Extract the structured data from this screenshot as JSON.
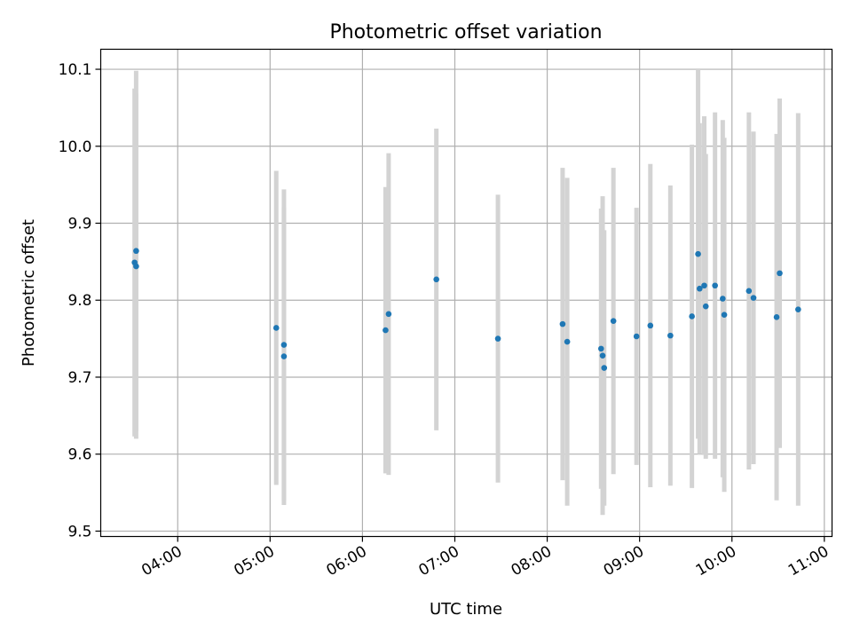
{
  "chart_data": {
    "type": "scatter",
    "title": "Photometric offset variation",
    "xlabel": "UTC time",
    "ylabel": "Photometric offset",
    "x_axis_kind": "time",
    "xlim": [
      "03:10",
      "11:05"
    ],
    "ylim": [
      9.493,
      10.126
    ],
    "xticks": [
      "04:00",
      "05:00",
      "06:00",
      "07:00",
      "08:00",
      "09:00",
      "10:00",
      "11:00"
    ],
    "yticks": [
      9.5,
      9.6,
      9.7,
      9.8,
      9.9,
      10.0,
      10.1
    ],
    "ytick_labels": [
      "9.5",
      "9.6",
      "9.7",
      "9.8",
      "9.9",
      "10.0",
      "10.1"
    ],
    "grid": true,
    "colors": {
      "points": "#1f77b4",
      "errorbars": "#d3d3d3",
      "grid": "#b0b0b0"
    },
    "points": [
      {
        "x": "03:32",
        "y": 9.849,
        "err": 0.226
      },
      {
        "x": "03:33",
        "y": 9.864,
        "err": 0.234
      },
      {
        "x": "03:33",
        "y": 9.844,
        "err": 0.224
      },
      {
        "x": "05:04",
        "y": 9.764,
        "err": 0.204
      },
      {
        "x": "05:09",
        "y": 9.742,
        "err": 0.202
      },
      {
        "x": "05:09",
        "y": 9.727,
        "err": 0.193
      },
      {
        "x": "06:15",
        "y": 9.761,
        "err": 0.186
      },
      {
        "x": "06:17",
        "y": 9.782,
        "err": 0.209
      },
      {
        "x": "06:48",
        "y": 9.827,
        "err": 0.196
      },
      {
        "x": "07:28",
        "y": 9.75,
        "err": 0.187
      },
      {
        "x": "08:10",
        "y": 9.769,
        "err": 0.203
      },
      {
        "x": "08:13",
        "y": 9.746,
        "err": 0.213
      },
      {
        "x": "08:35",
        "y": 9.737,
        "err": 0.182
      },
      {
        "x": "08:36",
        "y": 9.728,
        "err": 0.207
      },
      {
        "x": "08:37",
        "y": 9.712,
        "err": 0.179
      },
      {
        "x": "08:43",
        "y": 9.773,
        "err": 0.199
      },
      {
        "x": "08:58",
        "y": 9.753,
        "err": 0.167
      },
      {
        "x": "09:07",
        "y": 9.767,
        "err": 0.21
      },
      {
        "x": "09:20",
        "y": 9.754,
        "err": 0.195
      },
      {
        "x": "09:34",
        "y": 9.779,
        "err": 0.223
      },
      {
        "x": "09:38",
        "y": 9.86,
        "err": 0.24
      },
      {
        "x": "09:39",
        "y": 9.815,
        "err": 0.215
      },
      {
        "x": "09:42",
        "y": 9.819,
        "err": 0.22
      },
      {
        "x": "09:43",
        "y": 9.792,
        "err": 0.198
      },
      {
        "x": "09:49",
        "y": 9.819,
        "err": 0.225
      },
      {
        "x": "09:54",
        "y": 9.802,
        "err": 0.232
      },
      {
        "x": "09:55",
        "y": 9.781,
        "err": 0.23
      },
      {
        "x": "10:11",
        "y": 9.812,
        "err": 0.232
      },
      {
        "x": "10:14",
        "y": 9.803,
        "err": 0.216
      },
      {
        "x": "10:29",
        "y": 9.778,
        "err": 0.238
      },
      {
        "x": "10:31",
        "y": 9.835,
        "err": 0.227
      },
      {
        "x": "10:43",
        "y": 9.788,
        "err": 0.255
      }
    ]
  }
}
